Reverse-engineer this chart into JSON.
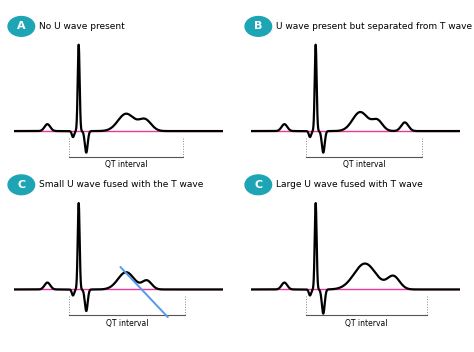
{
  "background_color": "#ffffff",
  "teal_color": "#1da5b5",
  "pink_color": "#e8389a",
  "blue_line_color": "#5599ee",
  "label_A": "A",
  "label_B": "B",
  "label_C1": "C",
  "label_C2": "C",
  "title_A": "No U wave present",
  "title_B": "U wave present but separated from T wave",
  "title_C1": "Small U wave fused with the T wave",
  "title_C2": "Large U wave fused with T wave",
  "qt_label": "QT interval",
  "title_fontsize": 6.5,
  "label_fontsize": 8,
  "ecg_lw": 1.6,
  "pink_lw": 1.0
}
